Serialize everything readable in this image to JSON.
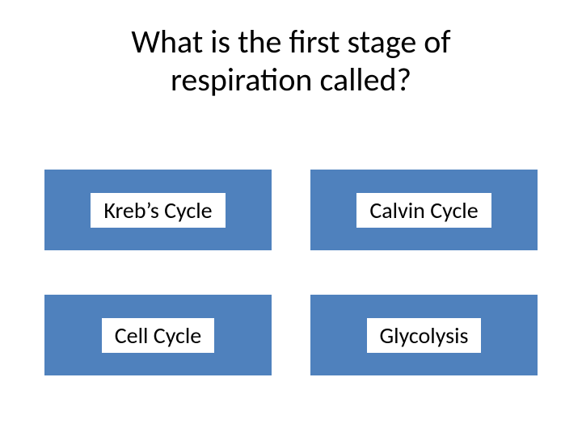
{
  "question": {
    "line1": "What is the first stage of",
    "line2": "respiration called?"
  },
  "options": [
    {
      "label": "Kreb’s Cycle"
    },
    {
      "label": "Calvin Cycle"
    },
    {
      "label": "Cell Cycle"
    },
    {
      "label": "Glycolysis"
    }
  ],
  "colors": {
    "option_bg": "#4f81bd",
    "page_bg": "#ffffff",
    "text": "#000000"
  },
  "typography": {
    "question_fontsize": 40,
    "option_fontsize": 28,
    "font_family": "Calibri"
  },
  "layout": {
    "grid_columns": 2,
    "grid_rows": 2,
    "option_height": 100
  }
}
